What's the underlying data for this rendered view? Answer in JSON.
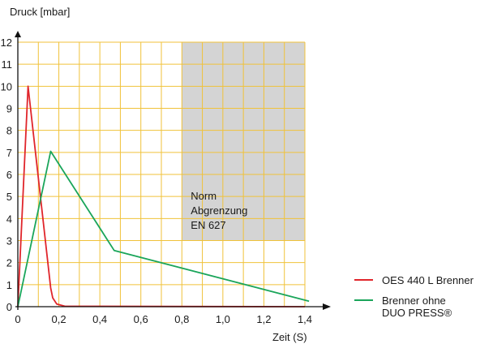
{
  "chart_data": {
    "type": "line",
    "ylabel": "Druck [mbar]",
    "xlabel": "Zeit (S)",
    "xlim": [
      0,
      1.4
    ],
    "ylim": [
      0,
      12
    ],
    "x_ticks": [
      0,
      0.2,
      0.4,
      0.6,
      0.8,
      1.0,
      1.2,
      1.4
    ],
    "x_tick_labels": [
      "0",
      "0,2",
      "0,4",
      "0,6",
      "0,8",
      "1,0",
      "1,2",
      "1,4"
    ],
    "y_ticks": [
      0,
      1,
      2,
      3,
      4,
      5,
      6,
      7,
      8,
      9,
      10,
      11,
      12
    ],
    "y_tick_labels": [
      "0",
      "1",
      "2",
      "3",
      "4",
      "5",
      "6",
      "7",
      "8",
      "9",
      "10",
      "11",
      "12"
    ],
    "grid": true,
    "grid_color": "#f0c23a",
    "grid_minor_step_x": 0.1,
    "legend_position": "bottom-right",
    "series": [
      {
        "name": "OES 440 L Brenner",
        "color": "#e0252b",
        "points": [
          [
            0,
            0
          ],
          [
            0.05,
            10
          ],
          [
            0.16,
            0.85
          ],
          [
            0.17,
            0.4
          ],
          [
            0.19,
            0.12
          ],
          [
            0.23,
            0.02
          ],
          [
            1.4,
            0
          ]
        ]
      },
      {
        "name": "Brenner ohne DUO PRESS®",
        "legend_lines": [
          "Brenner ohne",
          "DUO PRESS®"
        ],
        "color": "#1aa55a",
        "points": [
          [
            0,
            0
          ],
          [
            0.16,
            7.05
          ],
          [
            0.47,
            2.55
          ],
          [
            1.42,
            0.25
          ]
        ]
      }
    ],
    "annotations": [
      {
        "type": "region",
        "x_range": [
          0.8,
          1.4
        ],
        "y_range": [
          3,
          12
        ],
        "color": "#d4d4d4",
        "label_lines": [
          "Norm",
          "Abgrenzung",
          "EN 627"
        ]
      }
    ]
  }
}
